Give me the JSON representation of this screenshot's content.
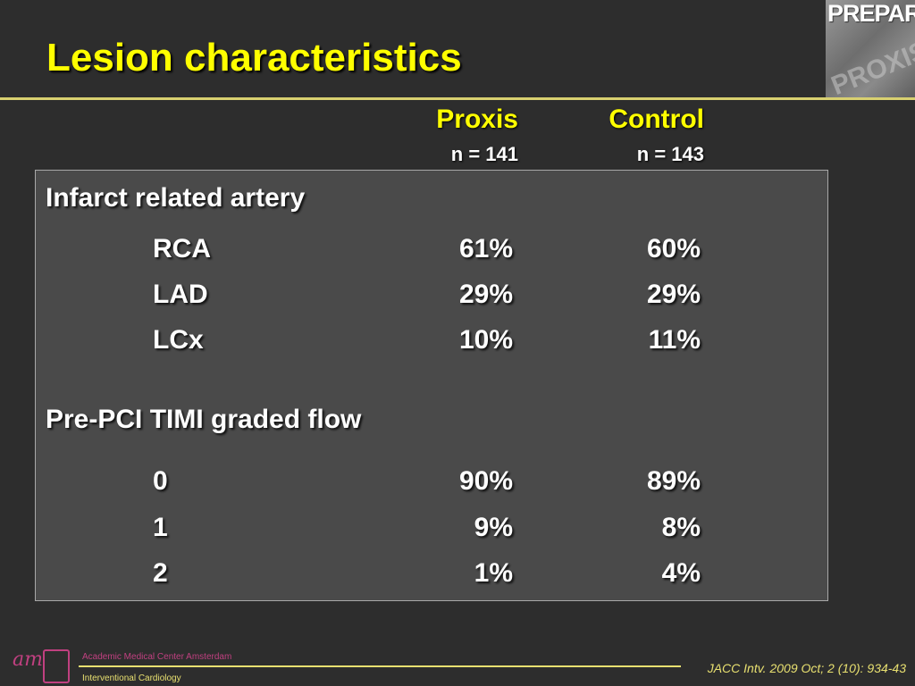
{
  "slide": {
    "title": "Lesion characteristics"
  },
  "logo": {
    "word": "PREPARE",
    "sub": "PROXIS"
  },
  "columns": [
    {
      "name": "Proxis",
      "n": "n = 141"
    },
    {
      "name": "Control",
      "n": "n = 143"
    }
  ],
  "sections": [
    {
      "heading": "Infarct related artery",
      "rows": [
        {
          "label": "RCA",
          "proxis": "61%",
          "control": "60%"
        },
        {
          "label": "LAD",
          "proxis": "29%",
          "control": "29%"
        },
        {
          "label": "LCx",
          "proxis": "10%",
          "control": "11%"
        }
      ]
    },
    {
      "heading": "Pre-PCI TIMI graded flow",
      "rows": [
        {
          "label": "0",
          "proxis": "90%",
          "control": "89%"
        },
        {
          "label": "1",
          "proxis": "9%",
          "control": "8%"
        },
        {
          "label": "2",
          "proxis": "1%",
          "control": "4%"
        }
      ]
    }
  ],
  "footer": {
    "amc_mark": "am",
    "institution": "Academic Medical Center Amsterdam",
    "department": "Interventional Cardiology",
    "citation": "JACC Intv. 2009 Oct; 2 (10): 934-43"
  },
  "colors": {
    "background": "#2d2d2d",
    "title": "#ffff00",
    "table_fill": "#4a4a4a",
    "accent_rule": "#e8e070",
    "amc_brand": "#c04080"
  }
}
